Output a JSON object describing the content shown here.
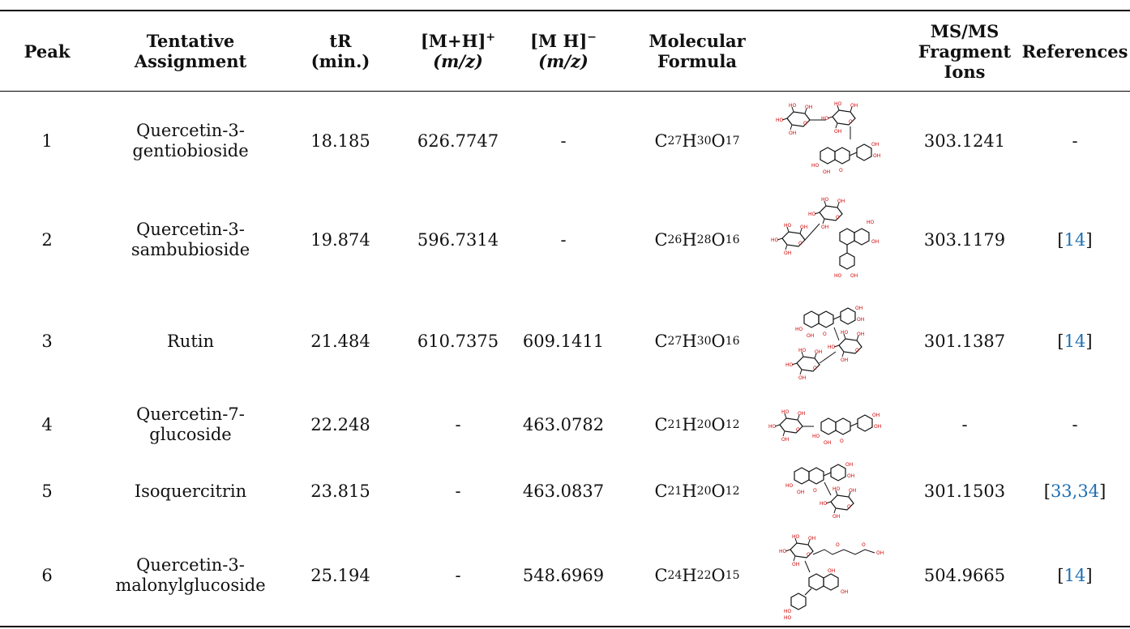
{
  "headers": {
    "peak": "Peak",
    "assignment_l1": "Tentative",
    "assignment_l2": "Assignment",
    "tr_l1": "tR",
    "tr_l2": "(min.)",
    "mh_pos_l1": "[M+H]",
    "mh_pos_sup": "+",
    "mh_pos_l2": "(m/z)",
    "mh_neg_l1": "[M H]",
    "mh_neg_sup": "−",
    "mh_neg_l2": "(m/z)",
    "formula_l1": "Molecular",
    "formula_l2": "Formula",
    "msms_l1": "MS/MS",
    "msms_l2": "Fragment",
    "msms_l3": "Ions",
    "refs": "References"
  },
  "rows": [
    {
      "peak": "1",
      "name_l1": "Quercetin-3-",
      "name_l2": "gentiobioside",
      "tr": "18.185",
      "mh_pos": "626.7747",
      "mh_neg": "-",
      "formula": {
        "c": "27",
        "h": "30",
        "o": "17"
      },
      "msms": "303.1241",
      "refs": "-",
      "structure": "quercetin-diglycoside-structure"
    },
    {
      "peak": "2",
      "name_l1": "Quercetin-3-",
      "name_l2": "sambubioside",
      "tr": "19.874",
      "mh_pos": "596.7314",
      "mh_neg": "-",
      "formula": {
        "c": "26",
        "h": "28",
        "o": "16"
      },
      "msms": "303.1179",
      "refs": "[14]",
      "structure": "quercetin-sambubioside-structure"
    },
    {
      "peak": "3",
      "name_l1": "Rutin",
      "name_l2": "",
      "tr": "21.484",
      "mh_pos": "610.7375",
      "mh_neg": "609.1411",
      "formula": {
        "c": "27",
        "h": "30",
        "o": "16"
      },
      "msms": "301.1387",
      "refs": "[14]",
      "structure": "rutin-structure"
    },
    {
      "peak": "4",
      "name_l1": "Quercetin-7-",
      "name_l2": "glucoside",
      "tr": "22.248",
      "mh_pos": "-",
      "mh_neg": "463.0782",
      "formula": {
        "c": "21",
        "h": "20",
        "o": "12"
      },
      "msms": "-",
      "refs": "-",
      "structure": "quercetin-7-glucoside-structure"
    },
    {
      "peak": "5",
      "name_l1": "Isoquercitrin",
      "name_l2": "",
      "tr": "23.815",
      "mh_pos": "-",
      "mh_neg": "463.0837",
      "formula": {
        "c": "21",
        "h": "20",
        "o": "12"
      },
      "msms": "301.1503",
      "refs": "[33,34]",
      "structure": "isoquercitrin-structure"
    },
    {
      "peak": "6",
      "name_l1": "Quercetin-3-",
      "name_l2": "malonylglucoside",
      "tr": "25.194",
      "mh_pos": "-",
      "mh_neg": "548.6969",
      "formula": {
        "c": "24",
        "h": "22",
        "o": "15"
      },
      "msms": "504.9665",
      "refs": "[14]",
      "structure": "quercetin-malonylglucoside-structure"
    }
  ]
}
